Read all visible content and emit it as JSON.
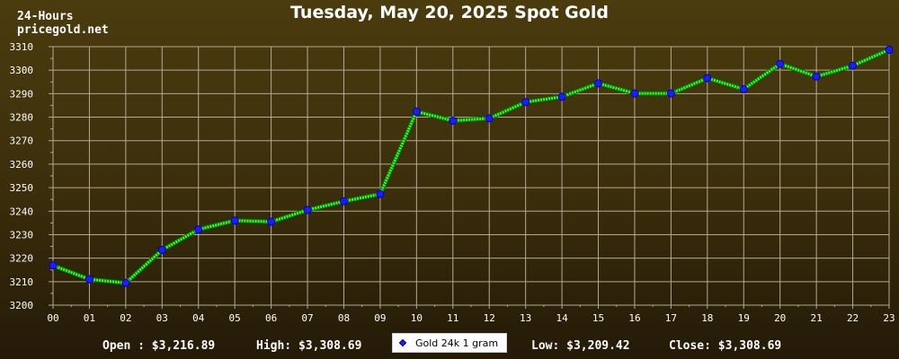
{
  "header": {
    "corner_line1": "24-Hours",
    "corner_line2": "pricegold.net"
  },
  "summary": {
    "open": "Open : $3,216.89",
    "high": "High: $3,308.69",
    "low": "Low: $3,209.42",
    "close": "Close: $3,308.69"
  },
  "colors": {
    "line": "#33ff22",
    "marker": "#1c1cff",
    "grid": "#b4aa96",
    "axis_text": "#ffffff"
  },
  "chart_data": {
    "type": "line",
    "title": "Tuesday, May 20, 2025 Spot Gold",
    "xlabel": "",
    "ylabel": "",
    "categories": [
      "00",
      "01",
      "02",
      "03",
      "04",
      "05",
      "06",
      "07",
      "08",
      "09",
      "10",
      "11",
      "12",
      "13",
      "14",
      "15",
      "16",
      "17",
      "18",
      "19",
      "20",
      "21",
      "22",
      "23"
    ],
    "series": [
      {
        "name": "Gold 24k 1 gram",
        "values": [
          3216.89,
          3211.0,
          3209.42,
          3223.5,
          3232.2,
          3236.0,
          3235.5,
          3240.5,
          3244.2,
          3247.3,
          3282.4,
          3278.5,
          3279.5,
          3286.4,
          3288.7,
          3294.4,
          3290.1,
          3290.1,
          3296.6,
          3291.9,
          3302.7,
          3297.3,
          3301.9,
          3308.69
        ]
      }
    ],
    "ylim": [
      3200,
      3310
    ],
    "yticks": [
      3200,
      3210,
      3220,
      3230,
      3240,
      3250,
      3260,
      3270,
      3280,
      3290,
      3300,
      3310
    ],
    "grid": true,
    "legend": "bottom-center"
  }
}
